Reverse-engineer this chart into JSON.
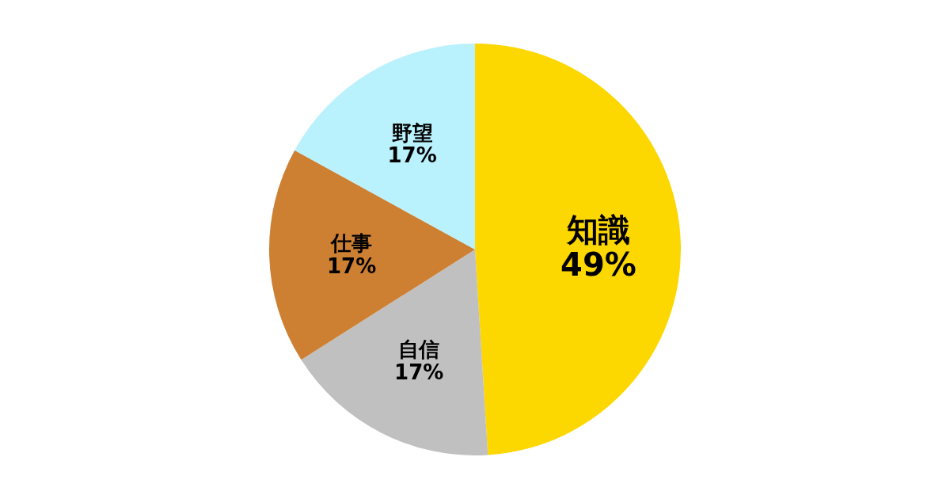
{
  "chart_data": {
    "type": "pie",
    "categories": [
      "知識",
      "自信",
      "仕事",
      "野望"
    ],
    "values": [
      49,
      17,
      17,
      17
    ],
    "colors": [
      "#fdd700",
      "#c0c0c0",
      "#cd7f32",
      "#b9f1fd"
    ],
    "value_labels": [
      "49%",
      "17%",
      "17%",
      "17%"
    ]
  }
}
